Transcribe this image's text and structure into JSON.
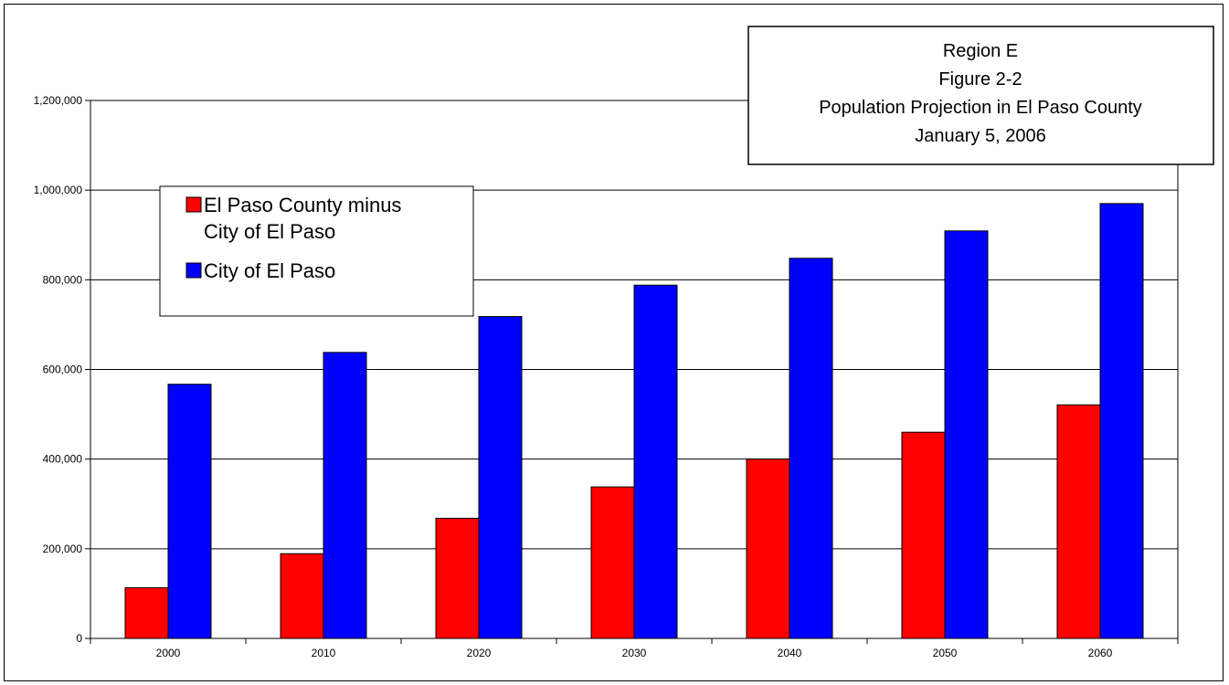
{
  "chart_data": {
    "type": "bar",
    "title_lines": [
      "Region E",
      "Figure 2-2",
      "Population Projection in El Paso County",
      "January 5, 2006"
    ],
    "xlabel": "",
    "ylabel": "",
    "categories": [
      "2000",
      "2010",
      "2020",
      "2030",
      "2040",
      "2050",
      "2060"
    ],
    "series": [
      {
        "name": "El Paso County minus City of El Paso",
        "legend_lines": [
          "El Paso County minus",
          "City of El Paso"
        ],
        "color": "#ff0000",
        "values": [
          113000,
          189000,
          268000,
          338000,
          400000,
          460000,
          521000
        ]
      },
      {
        "name": "City of El Paso",
        "legend_lines": [
          "City of El Paso"
        ],
        "color": "#0000ff",
        "values": [
          567000,
          638000,
          718000,
          788000,
          848000,
          909000,
          970000
        ]
      }
    ],
    "ylim": [
      0,
      1200000
    ],
    "yticks": [
      0,
      200000,
      400000,
      600000,
      800000,
      1000000,
      1200000
    ],
    "ytick_labels": [
      "0",
      "200,000",
      "400,000",
      "600,000",
      "800,000",
      "1,000,000",
      "1,200,000"
    ],
    "grid": true,
    "legend_position": "top-left"
  }
}
